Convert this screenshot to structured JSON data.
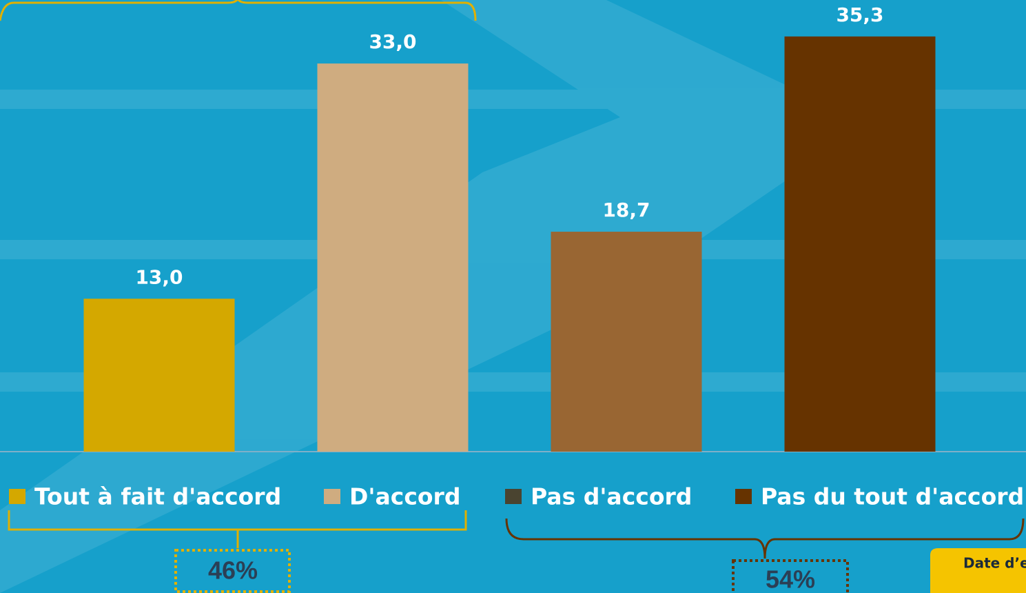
{
  "chart_data": {
    "type": "bar",
    "categories": [
      "Tout à fait d'accord",
      "D'accord",
      "Pas d'accord",
      "Pas du tout d'accord"
    ],
    "values": [
      13.0,
      33.0,
      18.7,
      35.3
    ],
    "value_labels": [
      "13,0",
      "33,0",
      "18,7",
      "35,3"
    ],
    "colors": [
      "#d4a800",
      "#cfac80",
      "#996633",
      "#663300"
    ],
    "legend_colors": [
      "#d4a800",
      "#cfac80",
      "#4a4430",
      "#663300"
    ],
    "ylim": [
      0,
      38.4
    ],
    "annotations": [
      "46%",
      "54%",
      "Date d’e"
    ]
  }
}
